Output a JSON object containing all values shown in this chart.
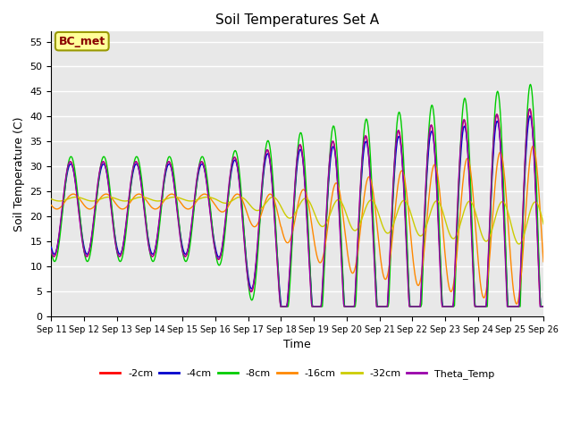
{
  "title": "Soil Temperatures Set A",
  "xlabel": "Time",
  "ylabel": "Soil Temperature (C)",
  "ylim": [
    0,
    57
  ],
  "yticks": [
    0,
    5,
    10,
    15,
    20,
    25,
    30,
    35,
    40,
    45,
    50,
    55
  ],
  "series_colors": {
    "-2cm": "#FF0000",
    "-4cm": "#0000CC",
    "-8cm": "#00CC00",
    "-16cm": "#FF8800",
    "-32cm": "#CCCC00",
    "Theta_Temp": "#9900AA"
  },
  "annotation_text": "BC_met",
  "annotation_color": "#880000",
  "annotation_bg": "#FFFF99",
  "background_color": "#E8E8E8",
  "grid_color": "#FFFFFF",
  "x_labels": [
    "Sep 11",
    "Sep 12",
    "Sep 13",
    "Sep 14",
    "Sep 15",
    "Sep 16",
    "Sep 17",
    "Sep 18",
    "Sep 19",
    "Sep 20",
    "Sep 21",
    "Sep 22",
    "Sep 23",
    "Sep 24",
    "Sep 25",
    "Sep 26"
  ]
}
